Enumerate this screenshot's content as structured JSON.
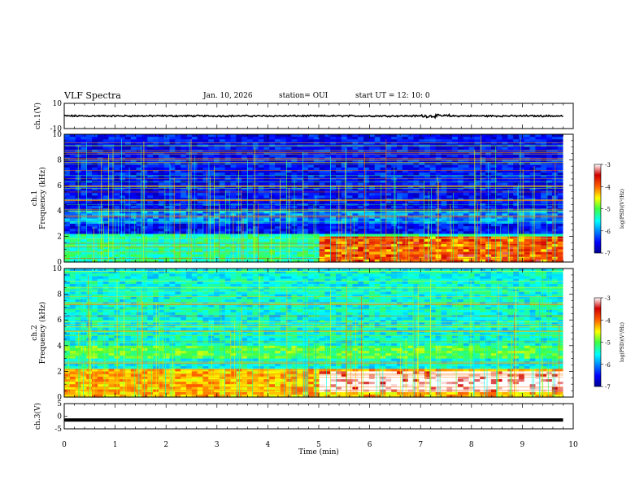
{
  "header": {
    "title": "VLF Spectra",
    "date": "Jan. 10, 2026",
    "station": "station= OUI",
    "start": "start UT =  12: 10: 0"
  },
  "chart_data": [
    {
      "type": "line",
      "panel": "ch1-waveform",
      "ylabel": "ch.1(V)",
      "yticklabels": [
        "10",
        "-10"
      ],
      "ylim": [
        -10,
        10
      ],
      "x": [
        0,
        1,
        2,
        3,
        4,
        5,
        6,
        7,
        8,
        9,
        9.8
      ],
      "values": [
        0,
        0,
        0,
        0,
        0,
        0,
        0,
        0,
        0,
        0,
        0
      ],
      "xlim": [
        0,
        10
      ]
    },
    {
      "type": "heatmap",
      "panel": "ch1-spectrogram",
      "ylabel": "ch.1 Frequency (kHz)",
      "yticks": [
        0,
        2,
        4,
        6,
        8,
        10
      ],
      "ylim": [
        0,
        10
      ],
      "xlim": [
        0,
        10
      ],
      "data_end_min": 9.8,
      "colorbar": {
        "label": "log(PSD)(V²/Hz)",
        "ticks": [
          -3,
          -4,
          -5,
          -6,
          -7
        ],
        "range": [
          -7,
          -3
        ]
      },
      "features": {
        "enhanced_band_khz": [
          0,
          2
        ],
        "enhanced_after_min": 5.0,
        "background_log_psd": -6.5
      }
    },
    {
      "type": "heatmap",
      "panel": "ch2-spectrogram",
      "ylabel": "ch.2 Frequency (kHz)",
      "yticks": [
        0,
        2,
        4,
        6,
        8,
        10
      ],
      "ylim": [
        0,
        10
      ],
      "xlim": [
        0,
        10
      ],
      "data_end_min": 9.8,
      "colorbar": {
        "label": "log(PSD)(V²/Hz)",
        "ticks": [
          -3,
          -4,
          -5,
          -6,
          -7
        ],
        "range": [
          -7,
          -3
        ]
      },
      "features": {
        "enhanced_band_khz": [
          0.5,
          2
        ],
        "enhanced_after_min": 5.0,
        "background_log_psd": -5.5
      }
    },
    {
      "type": "line",
      "panel": "ch3-waveform",
      "ylabel": "ch.3(V)",
      "yticklabels": [
        "5",
        "0",
        "-5"
      ],
      "ylim": [
        -5,
        5
      ],
      "x": [
        0,
        9.8
      ],
      "values": [
        -1.5,
        -1.5
      ],
      "xlabel": "Time (min)",
      "xticks": [
        0,
        1,
        2,
        3,
        4,
        5,
        6,
        7,
        8,
        9,
        10
      ],
      "xlim": [
        0,
        10
      ]
    }
  ],
  "colors": {
    "axis": "#000000",
    "background": "#ffffff"
  }
}
